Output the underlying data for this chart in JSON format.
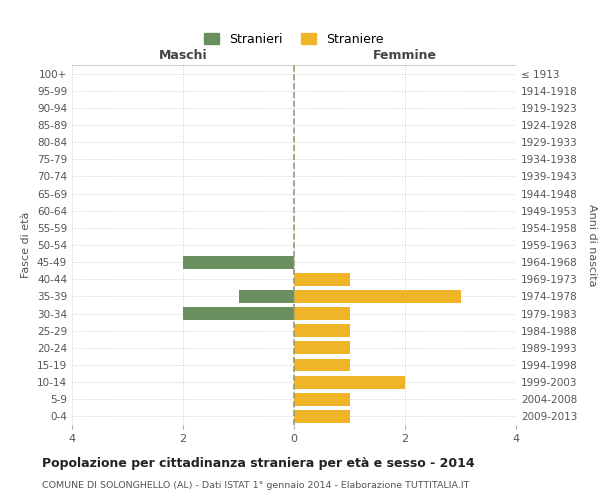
{
  "age_groups": [
    "0-4",
    "5-9",
    "10-14",
    "15-19",
    "20-24",
    "25-29",
    "30-34",
    "35-39",
    "40-44",
    "45-49",
    "50-54",
    "55-59",
    "60-64",
    "65-69",
    "70-74",
    "75-79",
    "80-84",
    "85-89",
    "90-94",
    "95-99",
    "100+"
  ],
  "birth_years": [
    "2009-2013",
    "2004-2008",
    "1999-2003",
    "1994-1998",
    "1989-1993",
    "1984-1988",
    "1979-1983",
    "1974-1978",
    "1969-1973",
    "1964-1968",
    "1959-1963",
    "1954-1958",
    "1949-1953",
    "1944-1948",
    "1939-1943",
    "1934-1938",
    "1929-1933",
    "1924-1928",
    "1919-1923",
    "1914-1918",
    "≤ 1913"
  ],
  "maschi": [
    0,
    0,
    0,
    0,
    0,
    0,
    2,
    1,
    0,
    2,
    0,
    0,
    0,
    0,
    0,
    0,
    0,
    0,
    0,
    0,
    0
  ],
  "femmine": [
    1,
    1,
    2,
    1,
    1,
    1,
    1,
    3,
    1,
    0,
    0,
    0,
    0,
    0,
    0,
    0,
    0,
    0,
    0,
    0,
    0
  ],
  "color_maschi": "#6b8e5e",
  "color_femmine": "#f0b429",
  "background_color": "#ffffff",
  "grid_color": "#cccccc",
  "title": "Popolazione per cittadinanza straniera per età e sesso - 2014",
  "subtitle": "COMUNE DI SOLONGHELLO (AL) - Dati ISTAT 1° gennaio 2014 - Elaborazione TUTTITALIA.IT",
  "label_maschi": "Stranieri",
  "label_femmine": "Straniere",
  "xlabel_left": "Maschi",
  "xlabel_right": "Femmine",
  "ylabel_left": "Fasce di età",
  "ylabel_right": "Anni di nascita",
  "xlim": 4
}
